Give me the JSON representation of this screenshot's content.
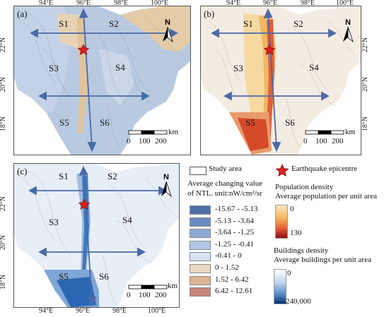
{
  "panels": [
    {
      "id": "a",
      "label": "(a)",
      "epicentre_icon": "red-star-icon"
    },
    {
      "id": "b",
      "label": "(b)",
      "epicentre_icon": "red-star-icon"
    },
    {
      "id": "c",
      "label": "(c)",
      "epicentre_icon": "red-star-icon"
    }
  ],
  "sectors": [
    "S1",
    "S2",
    "S3",
    "S4",
    "S5",
    "S6"
  ],
  "lon_ticks": [
    "94°E",
    "96°E",
    "98°E",
    "100°E"
  ],
  "lat_ticks": [
    "22°N",
    "20°N",
    "18°N"
  ],
  "north_label": "N",
  "scalebar": {
    "unit": "km",
    "ticks": [
      "0",
      "100",
      "200"
    ]
  },
  "legend": {
    "study_area": "Study area",
    "epicentre": "Earthquake epicentre",
    "ntl_title_line1": "Average changing value",
    "ntl_title_line2": "of NTL. unit:nW/cm²/sr",
    "ntl_classes": [
      {
        "label": "-15.67 - -5.13",
        "color": "#4f6fa8"
      },
      {
        "label": "-5.13 - -3.64",
        "color": "#6a8cc4"
      },
      {
        "label": "-3.64 - -1.25",
        "color": "#8eaad6"
      },
      {
        "label": "-1.25 - -0.41",
        "color": "#b3c7e6"
      },
      {
        "label": "-0.41 - 0",
        "color": "#d8e2f1"
      },
      {
        "label": "0 - 1.52",
        "color": "#ead9c0"
      },
      {
        "label": "1.52 - 6.42",
        "color": "#ddb394"
      },
      {
        "label": "6.42 - 12.61",
        "color": "#c48678"
      }
    ],
    "population_title": "Population density",
    "population_sub": "Average population per unit area",
    "population_min": "0",
    "population_max": "130",
    "buildings_title": "Buildings density",
    "buildings_sub": "Average buildings per unit area",
    "buildings_min": "0",
    "buildings_max": "240,000"
  },
  "colors": {
    "ntl_base": "#b8c9e0",
    "ntl_warm": "#e3cba8",
    "pop_base": "#f3ece2",
    "pop_high": "#f0b766",
    "pop_max": "#d64a2a",
    "bld_base": "#e8eef6",
    "bld_high": "#2b66b2",
    "arrow": "#4a6aa8",
    "star": "#d9201f"
  }
}
